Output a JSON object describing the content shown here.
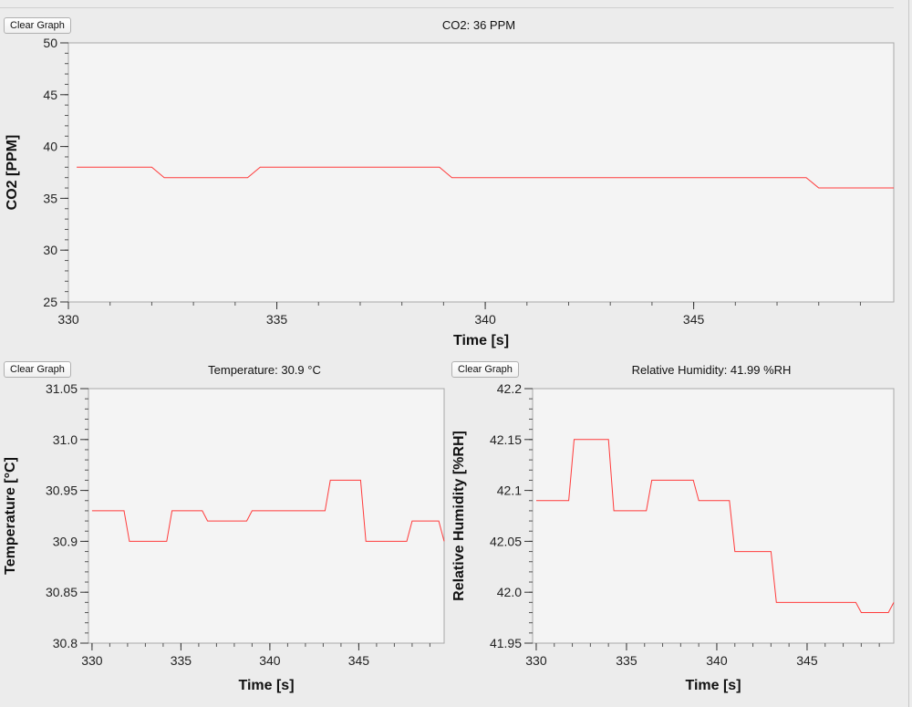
{
  "clear_label": "Clear Graph",
  "colors": {
    "line": "#ff3b3b",
    "plot_bg": "#f4f4f4",
    "frame": "#a8a8a8"
  },
  "chart_data": [
    {
      "type": "line",
      "title": "CO2: 36 PPM",
      "xlabel": "Time [s]",
      "ylabel": "CO2 [PPM]",
      "xlim": [
        330,
        349.8
      ],
      "ylim": [
        25,
        50
      ],
      "xticks": [
        330,
        335,
        340,
        345
      ],
      "xtick_labels": [
        "330",
        "335",
        "340",
        "345"
      ],
      "yticks": [
        25,
        30,
        35,
        40,
        45,
        50
      ],
      "ytick_labels": [
        "25",
        "30",
        "35",
        "40",
        "45",
        "50"
      ],
      "x": [
        330.2,
        332.0,
        332.3,
        334.3,
        334.6,
        338.9,
        339.2,
        347.7,
        348.0,
        349.8
      ],
      "y": [
        38,
        38,
        37,
        37,
        38,
        38,
        37,
        37,
        36,
        36
      ]
    },
    {
      "type": "line",
      "title": "Temperature: 30.9 °C",
      "xlabel": "Time [s]",
      "ylabel": "Temperature [°C]",
      "xlim": [
        329.8,
        349.8
      ],
      "ylim": [
        30.8,
        31.05
      ],
      "xticks": [
        330,
        335,
        340,
        345
      ],
      "xtick_labels": [
        "330",
        "335",
        "340",
        "345"
      ],
      "yticks": [
        30.8,
        30.85,
        30.9,
        30.95,
        31.0,
        31.05
      ],
      "ytick_labels": [
        "30.8",
        "30.85",
        "30.9",
        "30.95",
        "31.0",
        "31.05"
      ],
      "x": [
        330.0,
        331.8,
        332.1,
        334.2,
        334.5,
        336.2,
        336.5,
        338.7,
        339.0,
        343.1,
        343.4,
        345.1,
        345.4,
        347.7,
        348.0,
        349.5,
        349.8
      ],
      "y": [
        30.93,
        30.93,
        30.9,
        30.9,
        30.93,
        30.93,
        30.92,
        30.92,
        30.93,
        30.93,
        30.96,
        30.96,
        30.9,
        30.9,
        30.92,
        30.92,
        30.9
      ]
    },
    {
      "type": "line",
      "title": "Relative Humidity: 41.99 %RH",
      "xlabel": "Time [s]",
      "ylabel": "Relative Humidity [%RH]",
      "xlim": [
        329.8,
        349.8
      ],
      "ylim": [
        41.95,
        42.2
      ],
      "xticks": [
        330,
        335,
        340,
        345
      ],
      "xtick_labels": [
        "330",
        "335",
        "340",
        "345"
      ],
      "yticks": [
        41.95,
        42.0,
        42.05,
        42.1,
        42.15,
        42.2
      ],
      "ytick_labels": [
        "41.95",
        "42.0",
        "42.05",
        "42.1",
        "42.15",
        "42.2"
      ],
      "x": [
        330.0,
        331.8,
        332.1,
        334.0,
        334.3,
        336.1,
        336.4,
        338.7,
        339.0,
        340.7,
        341.0,
        343.0,
        343.3,
        347.7,
        348.0,
        349.5,
        349.8
      ],
      "y": [
        42.09,
        42.09,
        42.15,
        42.15,
        42.08,
        42.08,
        42.11,
        42.11,
        42.09,
        42.09,
        42.04,
        42.04,
        41.99,
        41.99,
        41.98,
        41.98,
        41.99
      ]
    }
  ]
}
